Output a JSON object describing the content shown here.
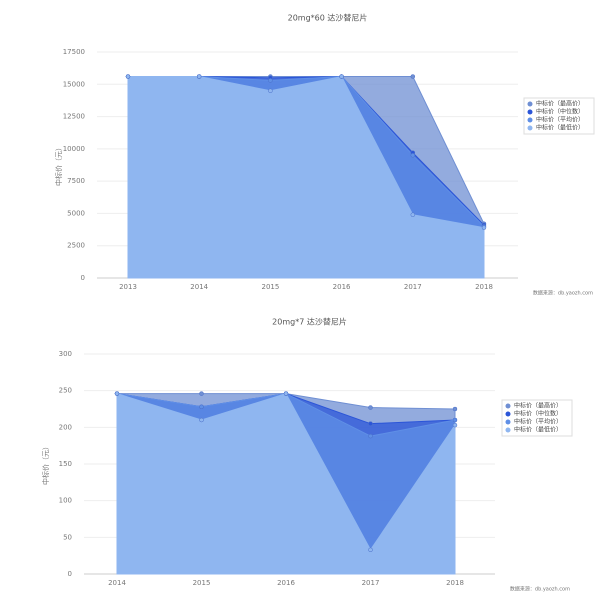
{
  "chart_data": [
    {
      "type": "area",
      "title": "20mg*60 达沙替尼片",
      "y_label": "中标价（元）",
      "source": "数据来源：db.yaozh.com",
      "categories": [
        "2013",
        "2014",
        "2015",
        "2016",
        "2017",
        "2018"
      ],
      "ylim": [
        0,
        17500
      ],
      "yticks": [
        0,
        2500,
        5000,
        7500,
        10000,
        12500,
        15000,
        17500
      ],
      "grid": true,
      "series": [
        {
          "name": "中标价（最高价）",
          "color": "#6f8fd3",
          "values": [
            15600,
            15600,
            15600,
            15600,
            15600,
            4200
          ]
        },
        {
          "name": "中标价（中位数）",
          "color": "#2b55d8",
          "values": [
            15600,
            15600,
            15500,
            15600,
            9700,
            4100
          ]
        },
        {
          "name": "中标价（平均价）",
          "color": "#5f8fe6",
          "values": [
            15600,
            15600,
            15300,
            15600,
            9500,
            4000
          ]
        },
        {
          "name": "中标价（最低价）",
          "color": "#8fb6f0",
          "values": [
            15600,
            15600,
            14500,
            15600,
            4900,
            3900
          ]
        }
      ]
    },
    {
      "type": "area",
      "title": "20mg*7 达沙替尼片",
      "y_label": "中标价（元）",
      "source": "数据来源：db.yaozh.com",
      "categories": [
        "2014",
        "2015",
        "2016",
        "2017",
        "2018"
      ],
      "ylim": [
        0,
        300
      ],
      "yticks": [
        0,
        50,
        100,
        150,
        200,
        250,
        300
      ],
      "grid": true,
      "series": [
        {
          "name": "中标价（最高价）",
          "color": "#6f8fd3",
          "values": [
            246,
            246,
            246,
            227,
            225
          ]
        },
        {
          "name": "中标价（中位数）",
          "color": "#2b55d8",
          "values": [
            246,
            228,
            246,
            205,
            210
          ]
        },
        {
          "name": "中标价（平均价）",
          "color": "#5f8fe6",
          "values": [
            246,
            228,
            246,
            188,
            210
          ]
        },
        {
          "name": "中标价（最低价）",
          "color": "#8fb6f0",
          "values": [
            246,
            210,
            246,
            33,
            203
          ]
        }
      ]
    }
  ]
}
